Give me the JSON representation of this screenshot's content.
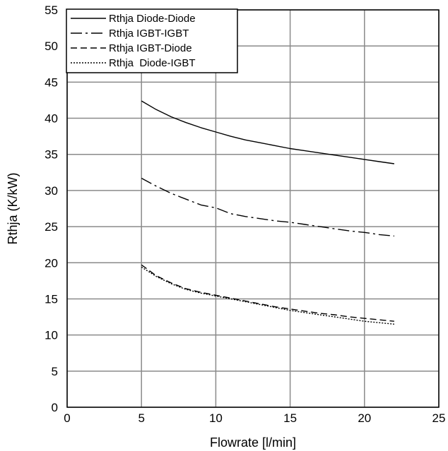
{
  "chart_data": {
    "type": "line",
    "xlabel": "Flowrate [l/min]",
    "ylabel": "Rthja (K/kW)",
    "xlim": [
      0,
      25
    ],
    "ylim": [
      0,
      55
    ],
    "xticks": [
      0,
      5,
      10,
      15,
      20,
      25
    ],
    "yticks": [
      0,
      5,
      10,
      15,
      20,
      25,
      30,
      35,
      40,
      45,
      50,
      55
    ],
    "grid": true,
    "legend_position": "top-left",
    "series": [
      {
        "name": "Rthja Diode-Diode",
        "style": "solid",
        "color": "#000000",
        "x": [
          5,
          6,
          7,
          8,
          9,
          10,
          11,
          12,
          13,
          14,
          15,
          16,
          17,
          18,
          19,
          20,
          21,
          22
        ],
        "y": [
          42.4,
          41.2,
          40.2,
          39.4,
          38.7,
          38.1,
          37.5,
          37.0,
          36.6,
          36.2,
          35.8,
          35.5,
          35.2,
          34.9,
          34.6,
          34.3,
          34.0,
          33.7
        ]
      },
      {
        "name": "Rthja IGBT-IGBT",
        "style": "longdash",
        "color": "#000000",
        "x": [
          5,
          6,
          7,
          8,
          9,
          10,
          11,
          12,
          13,
          14,
          15,
          16,
          17,
          18,
          19,
          20,
          21,
          22
        ],
        "y": [
          31.7,
          30.6,
          29.6,
          28.8,
          28.0,
          27.6,
          26.8,
          26.4,
          26.1,
          25.8,
          25.6,
          25.3,
          25.0,
          24.7,
          24.4,
          24.2,
          23.9,
          23.7
        ]
      },
      {
        "name": "Rthja IGBT-Diode",
        "style": "dash",
        "color": "#000000",
        "x": [
          5,
          6,
          7,
          8,
          9,
          10,
          11,
          12,
          13,
          14,
          15,
          16,
          17,
          18,
          19,
          20,
          21,
          22
        ],
        "y": [
          19.7,
          18.2,
          17.2,
          16.4,
          15.9,
          15.5,
          15.1,
          14.7,
          14.3,
          13.9,
          13.6,
          13.3,
          13.0,
          12.8,
          12.5,
          12.3,
          12.1,
          11.9
        ]
      },
      {
        "name": "Rthja  Diode-IGBT",
        "style": "dot",
        "color": "#000000",
        "x": [
          5,
          6,
          7,
          8,
          9,
          10,
          11,
          12,
          13,
          14,
          15,
          16,
          17,
          18,
          19,
          20,
          21,
          22
        ],
        "y": [
          19.4,
          18.1,
          17.1,
          16.3,
          15.8,
          15.4,
          15.0,
          14.6,
          14.2,
          13.8,
          13.4,
          13.1,
          12.8,
          12.5,
          12.2,
          11.9,
          11.7,
          11.5
        ]
      }
    ]
  }
}
